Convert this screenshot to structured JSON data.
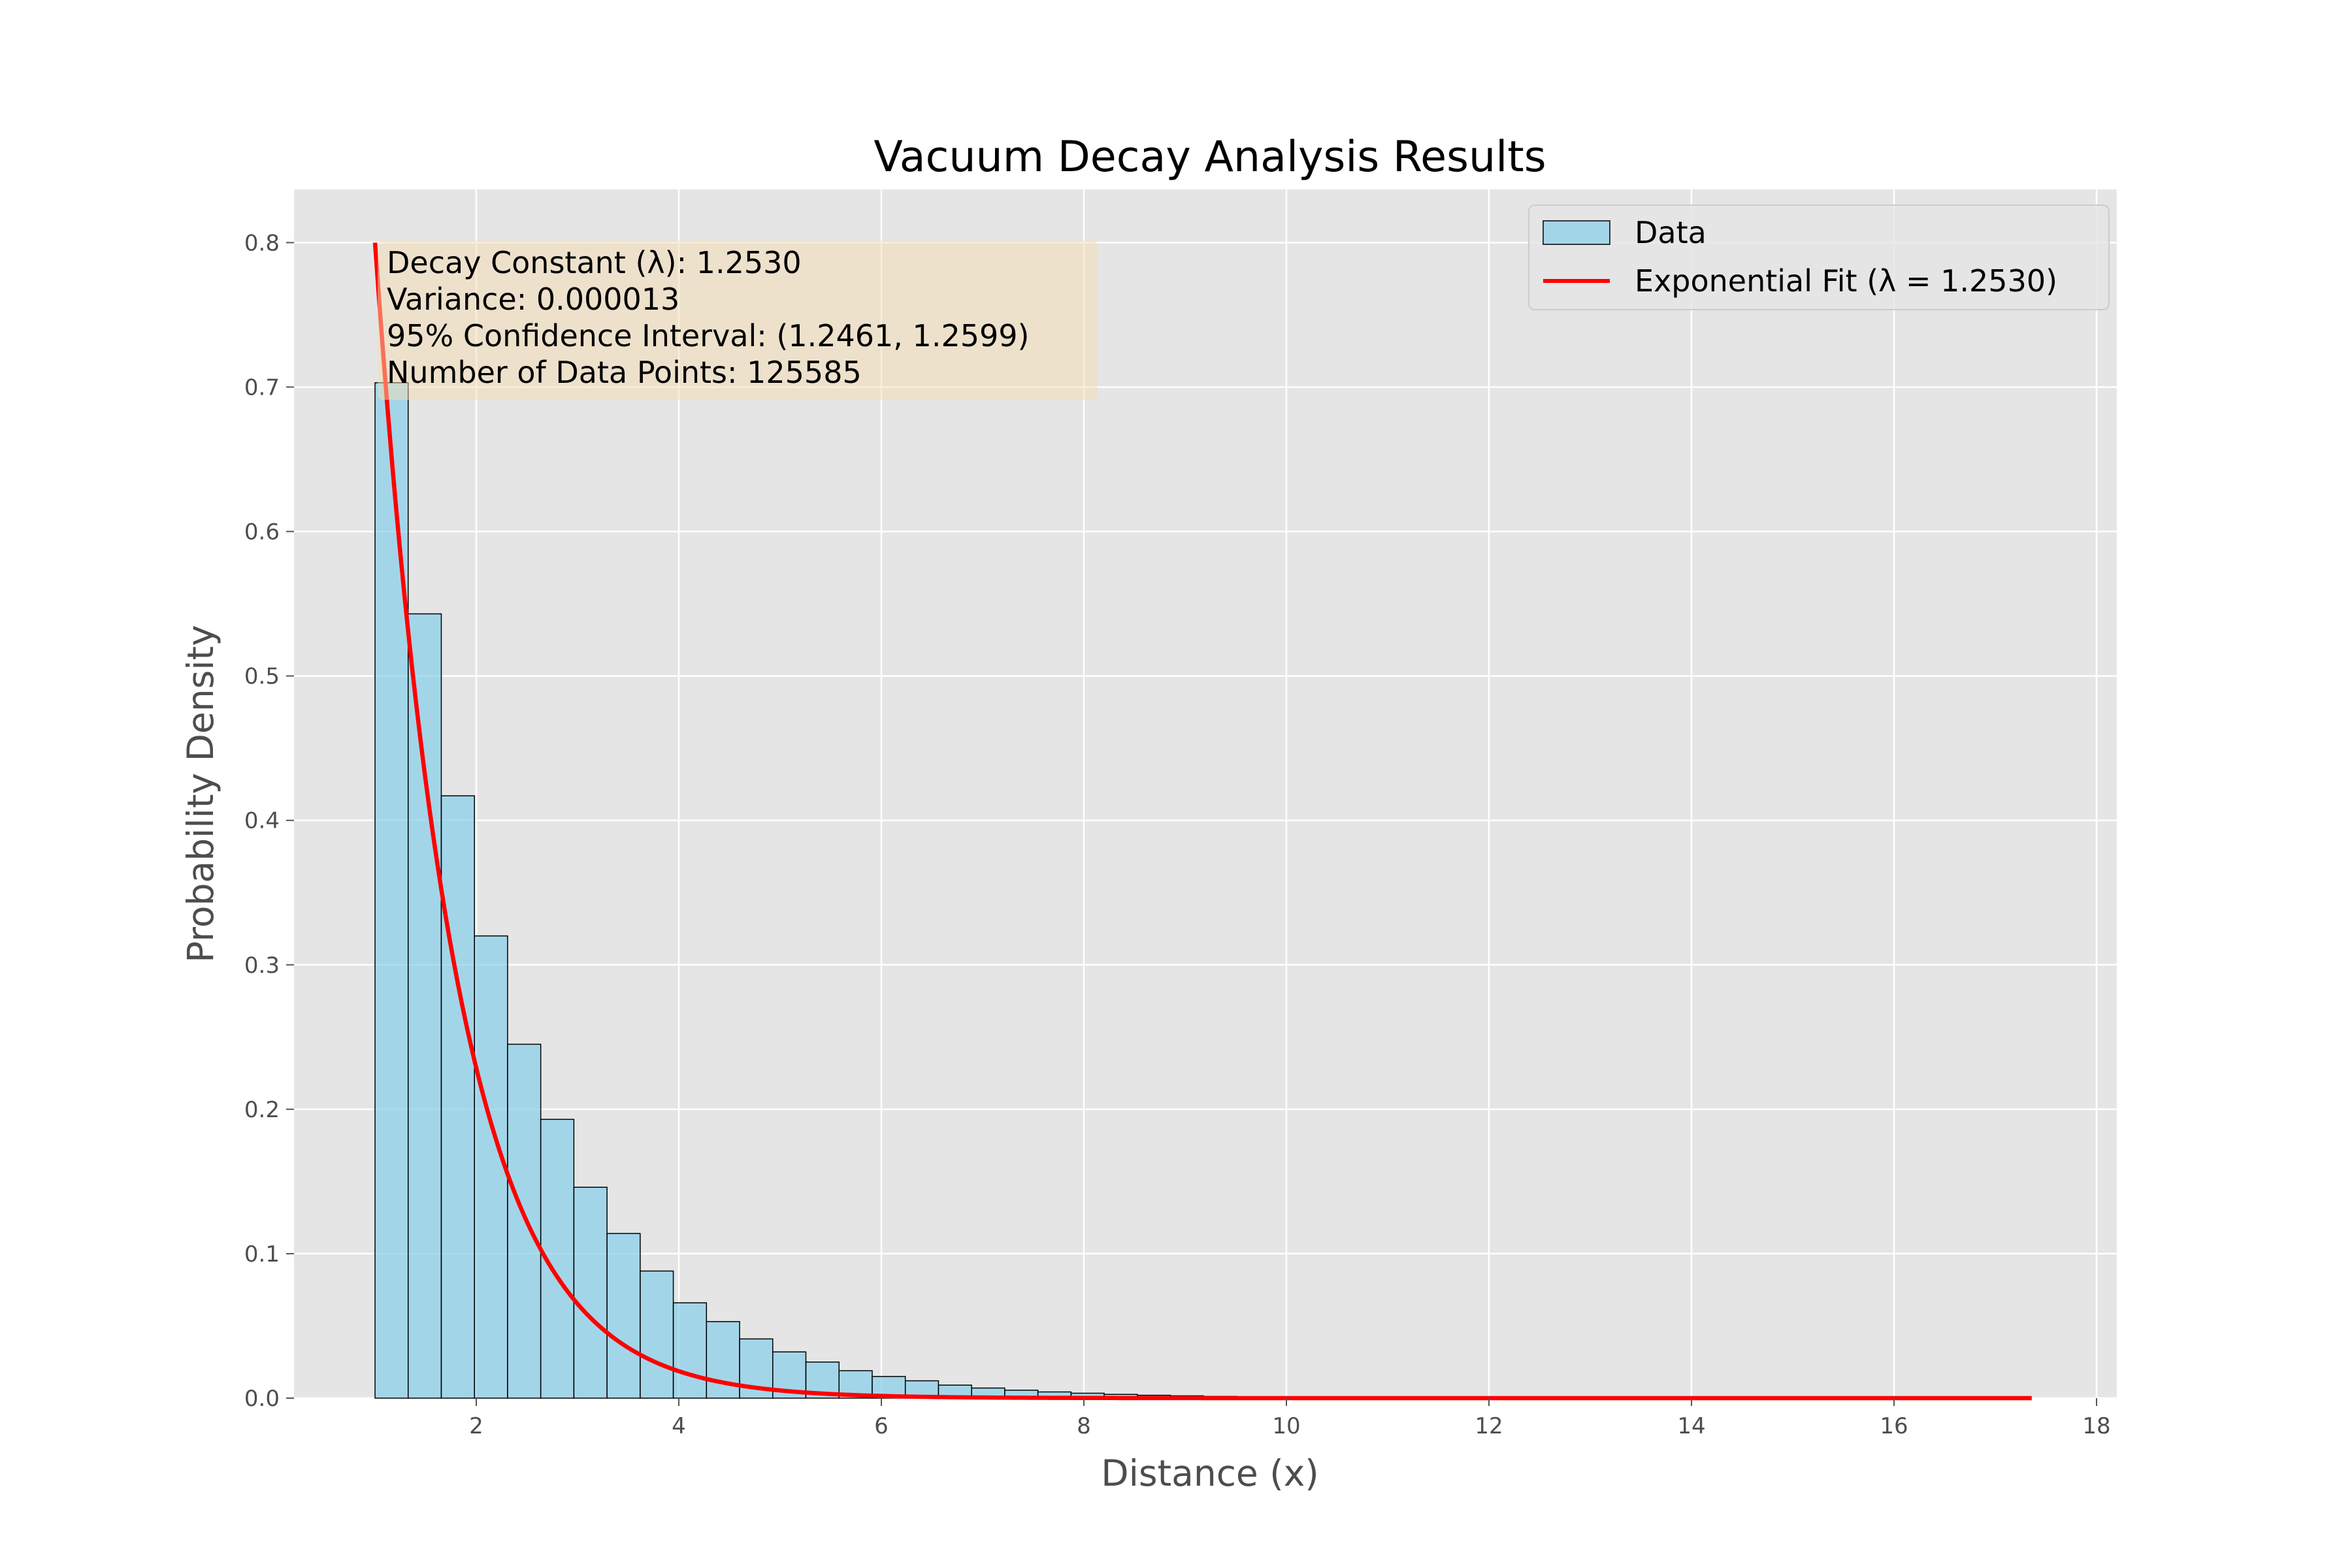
{
  "chart_data": {
    "type": "bar",
    "title": "Vacuum Decay Analysis Results",
    "xlabel": "Distance (x)",
    "ylabel": "Probability Density",
    "xlim": [
      0.2,
      18.2
    ],
    "ylim": [
      0,
      0.8368
    ],
    "xticks": [
      2,
      4,
      6,
      8,
      10,
      12,
      14,
      16,
      18
    ],
    "yticks": [
      0.0,
      0.1,
      0.2,
      0.3,
      0.4,
      0.5,
      0.6,
      0.7,
      0.8
    ],
    "grid": true,
    "legend": {
      "position": "top-right",
      "entries": [
        "Data",
        "Exponential Fit (λ = 1.2530)"
      ]
    },
    "histogram": {
      "name": "Data",
      "color": "#87CEEB",
      "edge_color": "#000000",
      "bin_start": 1.0,
      "bin_width": 0.3273,
      "values": [
        0.703,
        0.543,
        0.417,
        0.32,
        0.245,
        0.193,
        0.146,
        0.114,
        0.088,
        0.066,
        0.053,
        0.041,
        0.032,
        0.025,
        0.019,
        0.015,
        0.012,
        0.009,
        0.007,
        0.0055,
        0.0043,
        0.0034,
        0.0026,
        0.002,
        0.0016,
        0.0012,
        0.0009,
        0.0007,
        0.00055,
        0.00043,
        0.00033,
        0.00026,
        0.0002,
        0.00015,
        0.00012,
        0.0001,
        8e-05,
        6e-05,
        5e-05,
        4e-05,
        3e-05,
        2e-05,
        2e-05,
        1e-05,
        1e-05,
        1e-05,
        1e-05,
        0.0,
        0.0,
        0.0
      ]
    },
    "fit": {
      "name": "Exponential Fit (λ = 1.2530)",
      "color": "#FF0000",
      "lambda": 1.253,
      "x_range": [
        1.0,
        17.36
      ],
      "amplitude": 0.8
    },
    "annotation_lines": [
      "Decay Constant (λ): 1.2530",
      "Variance: 0.000013",
      "95% Confidence Interval: (1.2461, 1.2599)",
      "Number of Data Points: 125585"
    ],
    "colors": {
      "plot_background": "#E5E5E5",
      "grid": "#FFFFFF",
      "annotation_box": "#F5DEB3"
    }
  }
}
